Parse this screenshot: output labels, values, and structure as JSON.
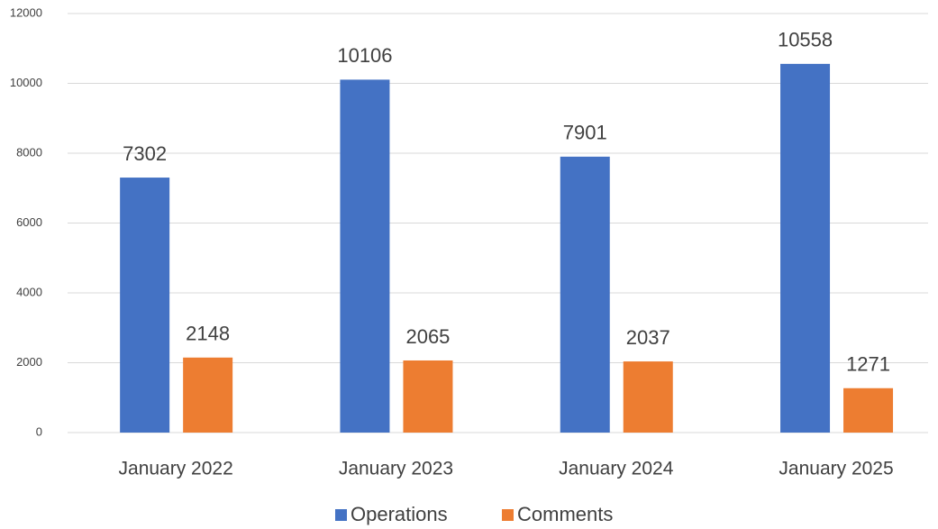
{
  "chart_data": {
    "type": "bar",
    "categories": [
      "January 2022",
      "January 2023",
      "January 2024",
      "January 2025"
    ],
    "series": [
      {
        "name": "Operations",
        "color": "#4472c4",
        "values": [
          7302,
          10106,
          7901,
          10558
        ]
      },
      {
        "name": "Comments",
        "color": "#ed7d31",
        "values": [
          2148,
          2065,
          2037,
          1271
        ]
      }
    ],
    "ylim": [
      0,
      12000
    ],
    "yticks": [
      0,
      2000,
      4000,
      6000,
      8000,
      10000,
      12000
    ],
    "grid": true,
    "legend": "bottom"
  }
}
